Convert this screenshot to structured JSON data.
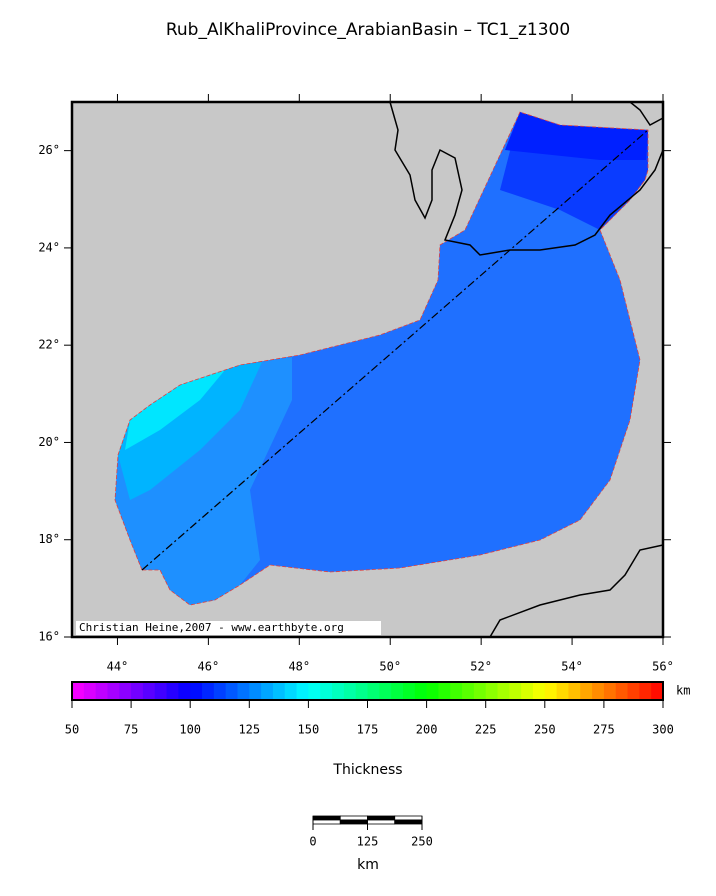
{
  "title": "Rub_AlKhaliProvince_ArabianBasin – TC1_z1300",
  "map": {
    "lonlim": [
      43,
      56
    ],
    "latlim": [
      16,
      27
    ],
    "lon_ticks": [
      {
        "value": 44,
        "label": "44°"
      },
      {
        "value": 46,
        "label": "46°"
      },
      {
        "value": 48,
        "label": "48°"
      },
      {
        "value": 50,
        "label": "50°"
      },
      {
        "value": 52,
        "label": "52°"
      },
      {
        "value": 54,
        "label": "54°"
      },
      {
        "value": 56,
        "label": "56°"
      }
    ],
    "lat_ticks": [
      {
        "value": 16,
        "label": "16°"
      },
      {
        "value": 18,
        "label": "18°"
      },
      {
        "value": 20,
        "label": "20°"
      },
      {
        "value": 22,
        "label": "22°"
      },
      {
        "value": 24,
        "label": "24°"
      },
      {
        "value": 26,
        "label": "26°"
      }
    ],
    "credit": "Christian Heine,2007 - www.earthbyte.org"
  },
  "colorbar": {
    "lim": [
      50,
      300
    ],
    "ticks": [
      50,
      75,
      100,
      125,
      150,
      175,
      200,
      225,
      250,
      275,
      300
    ],
    "unit": "km",
    "label": "Thickness"
  },
  "scalebar": {
    "ticks": [
      0,
      125,
      250
    ],
    "unit": "km"
  }
}
